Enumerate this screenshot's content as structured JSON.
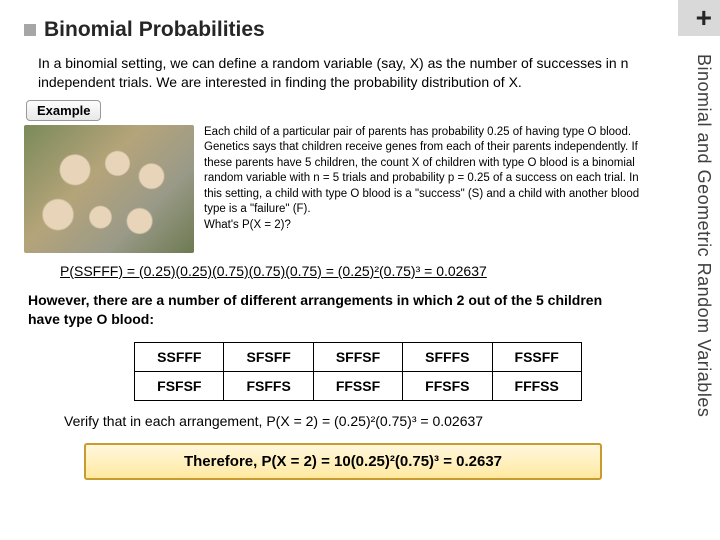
{
  "title": {
    "pre": "Binomial",
    "post": "Probabilities"
  },
  "sideLabel": "Binomial and Geometric Random Variables",
  "intro": "In a binomial setting, we can define a random variable (say, X) as the number of successes in n independent trials. We are interested in finding the probability distribution of X.",
  "exampleLabel": "Example",
  "bodyText": "Each child of a particular pair of parents has probability 0.25 of having type O blood. Genetics says that children receive genes from each of their parents independently. If these parents have 5 children, the count X of children with type O blood is a binomial random variable with n = 5 trials and probability p = 0.25 of a success on each trial. In this setting, a child with type O blood is a \"success\" (S) and a child with another blood type is a \"failure\" (F).\nWhat's P(X = 2)?",
  "equation1": "P(SSFFF) = (0.25)(0.25)(0.75)(0.75)(0.75) = (0.25)²(0.75)³ = 0.02637",
  "midText": "However, there are a number of different arrangements in which 2 out of the 5 children have type O blood:",
  "table": {
    "rows": [
      [
        "SSFFF",
        "SFSFF",
        "SFFSF",
        "SFFFS",
        "FSSFF"
      ],
      [
        "FSFSF",
        "FSFFS",
        "FFSSF",
        "FFSFS",
        "FFFSS"
      ]
    ]
  },
  "verify": "Verify that in each arrangement, P(X = 2) = (0.25)²(0.75)³ = 0.02637",
  "finalBox": "Therefore, P(X = 2) = 10(0.25)²(0.75)³ = 0.2637",
  "colors": {
    "cornerBox": "#d9d9d9",
    "bullet": "#a6a6a6",
    "finalBg1": "#fff7dd",
    "finalBg2": "#ffe9a0",
    "finalBorder": "#c99b2e"
  }
}
